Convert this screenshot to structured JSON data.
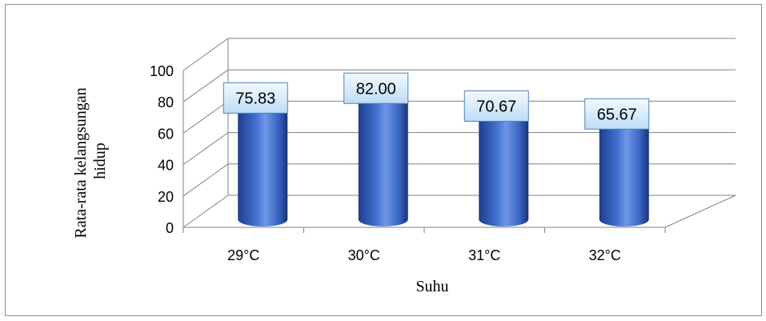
{
  "chart_data": {
    "type": "bar",
    "style": "3d-cylinder",
    "categories": [
      "29°C",
      "30°C",
      "31°C",
      "32°C"
    ],
    "values": [
      75.83,
      82.0,
      70.67,
      65.67
    ],
    "data_labels": [
      "75.83",
      "82.00",
      "70.67",
      "65.67"
    ],
    "title": "",
    "xlabel": "Suhu",
    "ylabel": "Rata-rata kelangsungan hidup",
    "ylim": [
      0,
      100
    ],
    "yticks": [
      "0",
      "20",
      "40",
      "60",
      "80",
      "100"
    ],
    "grid": true,
    "legend": "none"
  },
  "colors": {
    "bar_dark": "#1f3d8a",
    "bar_mid": "#3f6fd0",
    "bar_light": "#6f96e6",
    "label_fill_top": "#f4faff",
    "label_fill_bottom": "#bcdcf6",
    "label_border": "#4f81bd",
    "grid": "#808080"
  }
}
